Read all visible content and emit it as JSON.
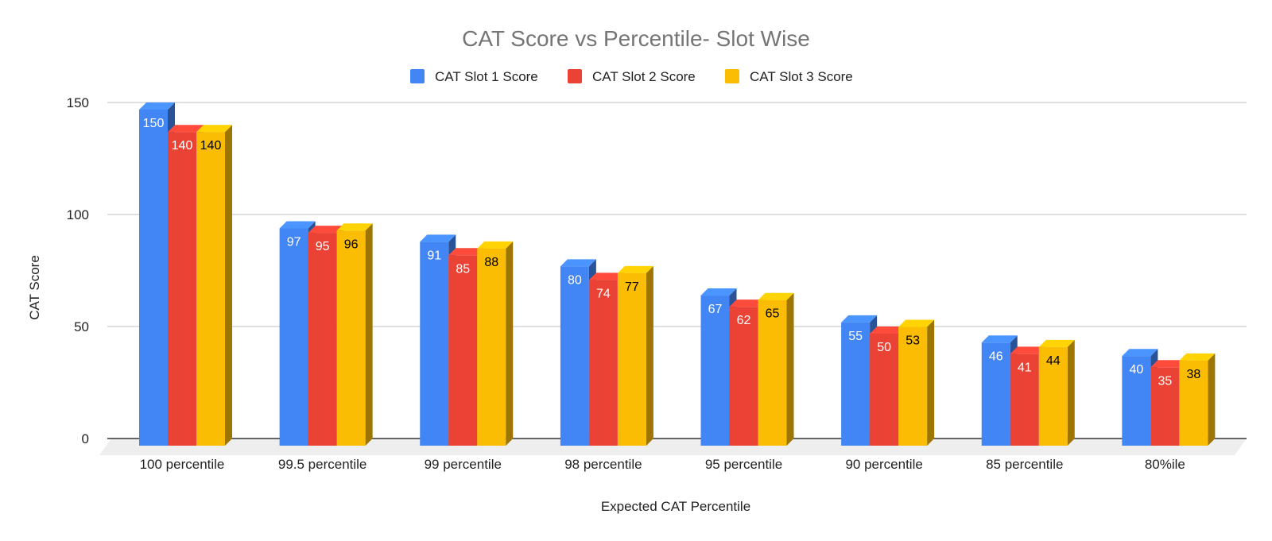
{
  "chart_data": {
    "type": "bar",
    "title": "CAT Score vs Percentile- Slot Wise",
    "xlabel": "Expected CAT Percentile",
    "ylabel": "CAT Score",
    "categories": [
      "100 percentile",
      "99.5 percentile",
      "99 percentile",
      "98 percentile",
      "95 percentile",
      "90 percentile",
      "85 percentile",
      "80%ile"
    ],
    "series": [
      {
        "name": "CAT Slot 1 Score",
        "color": "#4285F4",
        "label_color": "#ffffff",
        "values": [
          150,
          97,
          91,
          80,
          67,
          55,
          46,
          40
        ]
      },
      {
        "name": "CAT Slot 2 Score",
        "color": "#EA4335",
        "label_color": "#ffffff",
        "values": [
          140,
          95,
          85,
          74,
          62,
          50,
          41,
          35
        ]
      },
      {
        "name": "CAT Slot 3 Score",
        "color": "#FBBC04",
        "label_color": "#000000",
        "values": [
          140,
          96,
          88,
          77,
          65,
          53,
          44,
          38
        ]
      }
    ],
    "yticks": [
      0,
      50,
      100,
      150
    ],
    "ylim": [
      0,
      150
    ],
    "grid": true,
    "legend_position": "top",
    "style": "3d"
  }
}
